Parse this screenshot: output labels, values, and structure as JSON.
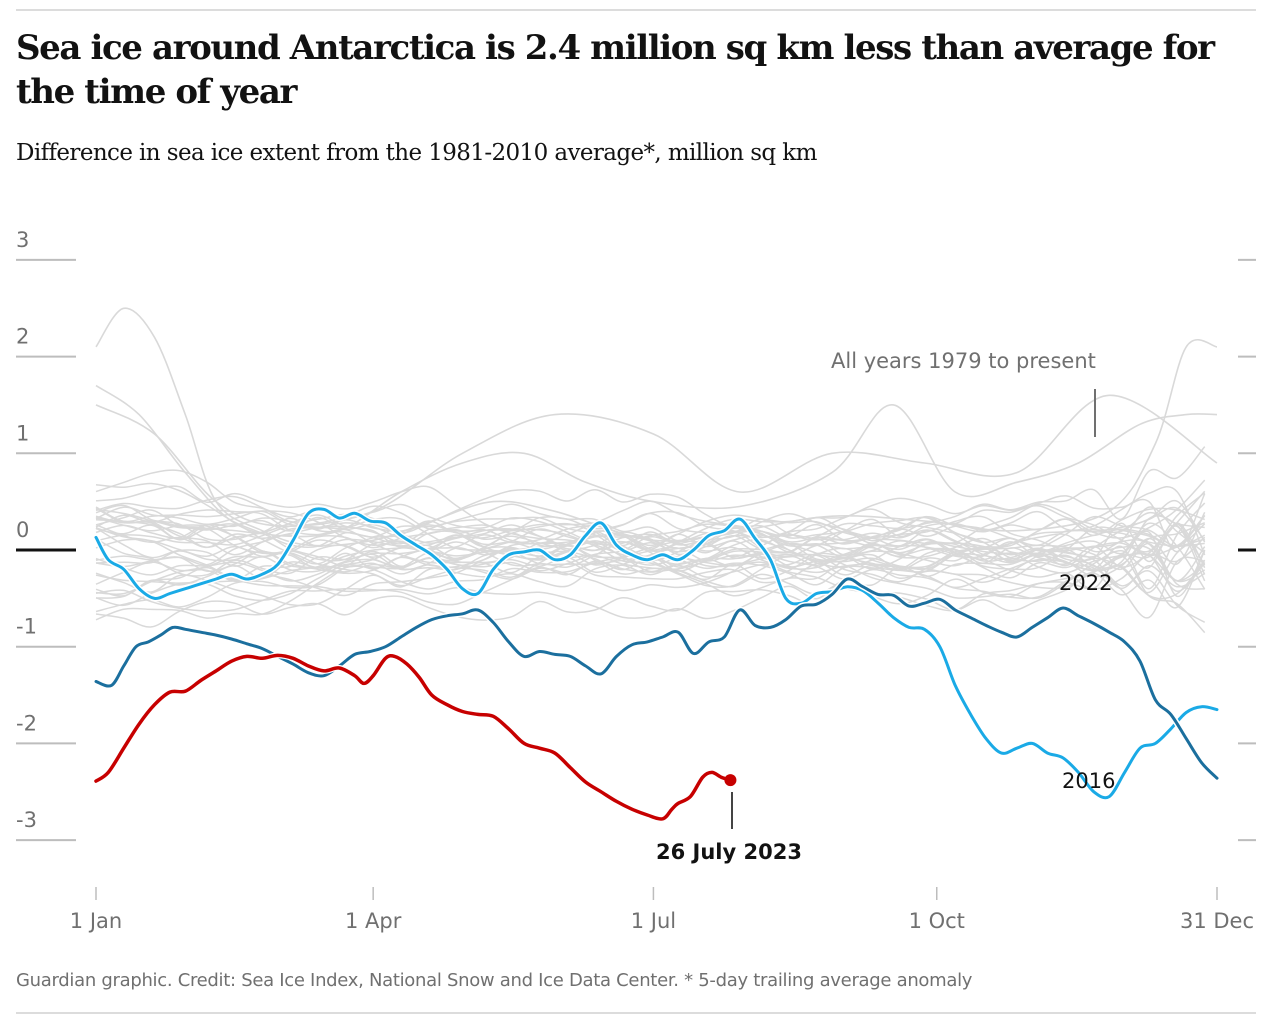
{
  "header": {
    "title": "Sea ice around Antarctica is 2.4 million sq km less than average for the time of year",
    "subtitle": "Difference in sea ice extent from the 1981-2010 average*, million sq km"
  },
  "footer": {
    "credit": "Guardian graphic. Credit: Sea Ice Index, National Snow and Ice Data Center. * 5-day trailing average anomaly"
  },
  "colors": {
    "background_years": "#d9d9d9",
    "year_2016": "#1aaae6",
    "year_2022": "#1b6f9e",
    "year_2023": "#c70000",
    "zero_line": "#121212",
    "gridline": "#bdbdbd"
  },
  "chart_data": {
    "type": "line",
    "title": "Sea ice around Antarctica is 2.4 million sq km less than average for the time of year",
    "subtitle": "Difference in sea ice extent from the 1981-2010 average*, million sq km",
    "xlabel": "",
    "ylabel": "million sq km",
    "x_unit": "day of year",
    "xlim": [
      1,
      365
    ],
    "ylim": [
      -3,
      3
    ],
    "grid": true,
    "y_ticks": [
      3,
      2,
      1,
      0,
      -1,
      -2,
      -3
    ],
    "y_tick_labels": [
      "3",
      "2",
      "1",
      "0",
      "-1",
      "-2",
      "-3"
    ],
    "x_ticks": [
      1,
      91,
      182,
      274,
      365
    ],
    "x_tick_labels": [
      "1 Jan",
      "1 Apr",
      "1 Jul",
      "1 Oct",
      "31 Dec"
    ],
    "highlighted_series": [
      {
        "name": "2023",
        "color": "#c70000",
        "end_marker": true,
        "x": [
          1,
          5,
          10,
          15,
          20,
          25,
          30,
          35,
          40,
          45,
          50,
          55,
          60,
          65,
          70,
          75,
          80,
          85,
          88,
          91,
          95,
          98,
          102,
          106,
          110,
          115,
          120,
          125,
          130,
          135,
          140,
          145,
          150,
          155,
          160,
          165,
          170,
          175,
          180,
          185,
          188,
          190,
          194,
          198,
          201,
          204,
          207
        ],
        "y": [
          -2.39,
          -2.3,
          -2.05,
          -1.8,
          -1.6,
          -1.47,
          -1.46,
          -1.35,
          -1.25,
          -1.15,
          -1.1,
          -1.12,
          -1.09,
          -1.12,
          -1.2,
          -1.25,
          -1.22,
          -1.3,
          -1.38,
          -1.3,
          -1.12,
          -1.1,
          -1.18,
          -1.32,
          -1.5,
          -1.6,
          -1.67,
          -1.7,
          -1.72,
          -1.85,
          -2.0,
          -2.05,
          -2.1,
          -2.25,
          -2.4,
          -2.5,
          -2.6,
          -2.68,
          -2.74,
          -2.78,
          -2.68,
          -2.62,
          -2.55,
          -2.35,
          -2.3,
          -2.35,
          -2.38
        ]
      },
      {
        "name": "2022",
        "color": "#1b6f9e",
        "x": [
          1,
          6,
          10,
          14,
          18,
          22,
          26,
          30,
          35,
          40,
          45,
          50,
          55,
          60,
          65,
          70,
          75,
          80,
          85,
          90,
          95,
          100,
          105,
          110,
          115,
          120,
          125,
          130,
          135,
          140,
          145,
          150,
          155,
          160,
          165,
          170,
          175,
          180,
          185,
          190,
          195,
          200,
          205,
          210,
          215,
          220,
          225,
          230,
          235,
          240,
          245,
          250,
          255,
          260,
          265,
          270,
          275,
          280,
          285,
          290,
          295,
          300,
          305,
          310,
          315,
          320,
          325,
          330,
          335,
          340,
          345,
          350,
          355,
          360,
          365
        ],
        "y": [
          -1.36,
          -1.4,
          -1.2,
          -1.0,
          -0.95,
          -0.88,
          -0.8,
          -0.82,
          -0.85,
          -0.88,
          -0.92,
          -0.97,
          -1.02,
          -1.1,
          -1.18,
          -1.27,
          -1.3,
          -1.2,
          -1.08,
          -1.05,
          -1.0,
          -0.9,
          -0.8,
          -0.72,
          -0.68,
          -0.66,
          -0.62,
          -0.75,
          -0.95,
          -1.1,
          -1.05,
          -1.08,
          -1.1,
          -1.2,
          -1.28,
          -1.1,
          -0.98,
          -0.95,
          -0.9,
          -0.85,
          -1.07,
          -0.95,
          -0.9,
          -0.62,
          -0.78,
          -0.8,
          -0.72,
          -0.58,
          -0.56,
          -0.46,
          -0.3,
          -0.38,
          -0.46,
          -0.47,
          -0.58,
          -0.55,
          -0.51,
          -0.62,
          -0.7,
          -0.78,
          -0.85,
          -0.9,
          -0.8,
          -0.7,
          -0.6,
          -0.68,
          -0.76,
          -0.85,
          -0.95,
          -1.15,
          -1.55,
          -1.7,
          -1.95,
          -2.2,
          -2.36
        ]
      },
      {
        "name": "2016",
        "color": "#1aaae6",
        "x": [
          1,
          5,
          10,
          15,
          20,
          25,
          30,
          35,
          40,
          45,
          50,
          55,
          60,
          65,
          70,
          75,
          80,
          85,
          90,
          95,
          100,
          105,
          110,
          115,
          120,
          125,
          130,
          135,
          140,
          145,
          150,
          155,
          160,
          165,
          170,
          175,
          180,
          185,
          190,
          195,
          200,
          205,
          210,
          215,
          220,
          225,
          230,
          235,
          240,
          245,
          250,
          255,
          260,
          265,
          270,
          275,
          280,
          285,
          290,
          295,
          300,
          305,
          310,
          315,
          320,
          325,
          330,
          335,
          340,
          345,
          350,
          355,
          360,
          365
        ],
        "y": [
          0.13,
          -0.1,
          -0.2,
          -0.4,
          -0.5,
          -0.45,
          -0.4,
          -0.35,
          -0.3,
          -0.25,
          -0.3,
          -0.25,
          -0.15,
          0.1,
          0.38,
          0.42,
          0.33,
          0.38,
          0.3,
          0.28,
          0.15,
          0.05,
          -0.05,
          -0.2,
          -0.4,
          -0.45,
          -0.2,
          -0.05,
          -0.02,
          0.0,
          -0.1,
          -0.05,
          0.15,
          0.28,
          0.05,
          -0.05,
          -0.1,
          -0.05,
          -0.1,
          0.0,
          0.15,
          0.2,
          0.32,
          0.12,
          -0.1,
          -0.5,
          -0.55,
          -0.45,
          -0.43,
          -0.38,
          -0.42,
          -0.55,
          -0.7,
          -0.8,
          -0.82,
          -1.0,
          -1.4,
          -1.7,
          -1.95,
          -2.1,
          -2.05,
          -2.0,
          -2.1,
          -2.15,
          -2.3,
          -2.5,
          -2.55,
          -2.3,
          -2.05,
          -2.0,
          -1.85,
          -1.68,
          -1.62,
          -1.65
        ]
      }
    ],
    "background_series_note": "All years 1979 to present",
    "background_series_sample": [
      {
        "x": [
          1,
          10,
          20,
          30,
          40,
          55,
          70,
          91,
          110,
          130,
          150,
          182,
          210,
          240,
          270,
          300,
          330,
          345,
          355,
          365
        ],
        "y": [
          2.1,
          2.5,
          2.2,
          1.4,
          0.5,
          0.2,
          0.05,
          0.1,
          0.3,
          0.5,
          0.4,
          0.1,
          0.2,
          0.35,
          0.3,
          0.2,
          0.4,
          1.1,
          2.1,
          2.1
        ]
      },
      {
        "x": [
          1,
          15,
          30,
          45,
          60,
          80,
          100,
          120,
          140,
          160,
          182,
          210,
          240,
          260,
          280,
          300,
          320,
          340,
          355,
          365
        ],
        "y": [
          1.7,
          1.4,
          0.8,
          0.3,
          0.15,
          0.2,
          0.6,
          0.9,
          1.0,
          0.7,
          0.5,
          0.45,
          0.8,
          1.5,
          0.6,
          0.7,
          0.9,
          1.3,
          1.4,
          1.4
        ]
      },
      {
        "x": [
          1,
          20,
          40,
          60,
          91,
          120,
          150,
          182,
          210,
          240,
          270,
          300,
          330,
          365
        ],
        "y": [
          1.5,
          1.2,
          0.5,
          0.25,
          0.4,
          1.0,
          1.4,
          1.2,
          0.6,
          1.0,
          0.9,
          0.8,
          1.6,
          0.9
        ]
      }
    ],
    "annotations": [
      {
        "text": "All years 1979 to present",
        "x_day": 322,
        "y": 1.15
      },
      {
        "text": "2022",
        "x_day": 322,
        "y": -0.3
      },
      {
        "text": "2016",
        "x_day": 322,
        "y": -2.35
      },
      {
        "text": "26 July 2023",
        "x_day": 207,
        "y": -2.38
      }
    ],
    "legend": "none"
  }
}
